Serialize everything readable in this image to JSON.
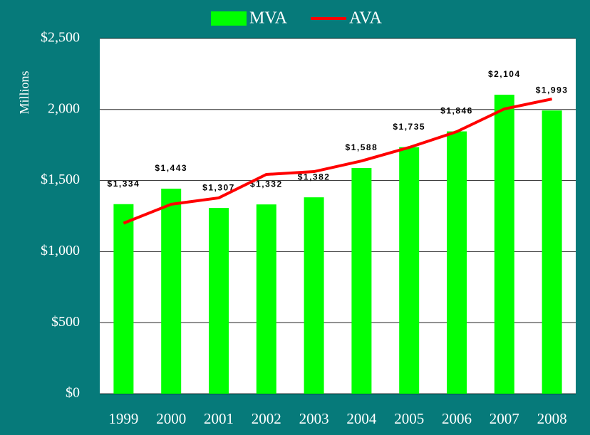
{
  "chart_data": {
    "type": "bar",
    "y_label": "Millions",
    "categories": [
      "1999",
      "2000",
      "2001",
      "2002",
      "2003",
      "2004",
      "2005",
      "2006",
      "2007",
      "2008"
    ],
    "series": [
      {
        "name": "MVA",
        "type": "bar",
        "color": "#00ff00",
        "values": [
          1334,
          1443,
          1307,
          1332,
          1382,
          1588,
          1735,
          1846,
          2104,
          1993
        ],
        "value_labels": [
          "$1,334",
          "$1,443",
          "$1,307",
          "$1,332",
          "$1,382",
          "$1,588",
          "$1,735",
          "$1,846",
          "$2,104",
          "$1,993"
        ]
      },
      {
        "name": "AVA",
        "type": "line",
        "color": "#ff0000",
        "values": [
          1200,
          1333,
          1378,
          1543,
          1563,
          1638,
          1733,
          1844,
          2004,
          2074
        ]
      }
    ],
    "ylim": [
      0,
      2500
    ],
    "yticks": [
      {
        "value": 0,
        "label": "$0"
      },
      {
        "value": 500,
        "label": "$500"
      },
      {
        "value": 1000,
        "label": "$1,000"
      },
      {
        "value": 1500,
        "label": "$1,500"
      },
      {
        "value": 2000,
        "label": "2,000"
      },
      {
        "value": 2500,
        "label": "$2,500"
      }
    ],
    "grid": true,
    "legend": "top"
  }
}
